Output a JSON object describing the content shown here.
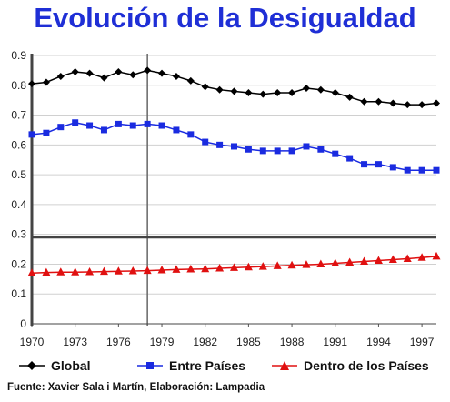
{
  "title": "Evolución de la Desigualdad",
  "source": "Fuente: Xavier Sala i Martín, Elaboración: Lampadia",
  "colors": {
    "title": "#1f2fd6",
    "global": "#000000",
    "entre": "#1a2be0",
    "dentro": "#e01010",
    "grid": "#d0d0d0"
  },
  "chart_data": {
    "type": "line",
    "title": "Evolución de la Desigualdad",
    "xlabel": "",
    "ylabel": "",
    "xlim": [
      1970,
      1998
    ],
    "ylim": [
      0,
      0.9
    ],
    "grid": true,
    "legend_placement": "bottom",
    "x_ticks": [
      "1970",
      "1973",
      "1976",
      "1979",
      "1982",
      "1985",
      "1988",
      "1991",
      "1994",
      "1997"
    ],
    "y_ticks": [
      "0",
      "0.1",
      "0.2",
      "0.3",
      "0.4",
      "0.5",
      "0.6",
      "0.7",
      "0.8",
      "0.9"
    ],
    "x": [
      1970,
      1971,
      1972,
      1973,
      1974,
      1975,
      1976,
      1977,
      1978,
      1979,
      1980,
      1981,
      1982,
      1983,
      1984,
      1985,
      1986,
      1987,
      1988,
      1989,
      1990,
      1991,
      1992,
      1993,
      1994,
      1995,
      1996,
      1997,
      1998
    ],
    "vertical_markers": [
      1970,
      1978
    ],
    "horizontal_marker": 0.29,
    "series": [
      {
        "name": "Global",
        "marker": "diamond",
        "values": [
          0.805,
          0.81,
          0.83,
          0.845,
          0.84,
          0.825,
          0.845,
          0.835,
          0.85,
          0.84,
          0.83,
          0.815,
          0.795,
          0.785,
          0.78,
          0.775,
          0.77,
          0.775,
          0.775,
          0.79,
          0.785,
          0.775,
          0.76,
          0.745,
          0.745,
          0.74,
          0.735,
          0.735,
          0.74
        ]
      },
      {
        "name": "Entre Países",
        "marker": "square",
        "values": [
          0.635,
          0.64,
          0.66,
          0.675,
          0.665,
          0.65,
          0.67,
          0.665,
          0.67,
          0.665,
          0.65,
          0.635,
          0.61,
          0.6,
          0.595,
          0.585,
          0.58,
          0.58,
          0.58,
          0.595,
          0.585,
          0.57,
          0.555,
          0.535,
          0.535,
          0.525,
          0.515,
          0.515,
          0.515
        ]
      },
      {
        "name": "Dentro de los Países",
        "marker": "triangle",
        "values": [
          0.17,
          0.172,
          0.173,
          0.173,
          0.174,
          0.175,
          0.176,
          0.177,
          0.178,
          0.18,
          0.182,
          0.183,
          0.184,
          0.186,
          0.188,
          0.19,
          0.192,
          0.194,
          0.196,
          0.198,
          0.2,
          0.203,
          0.206,
          0.209,
          0.212,
          0.215,
          0.218,
          0.222,
          0.226
        ]
      }
    ]
  }
}
